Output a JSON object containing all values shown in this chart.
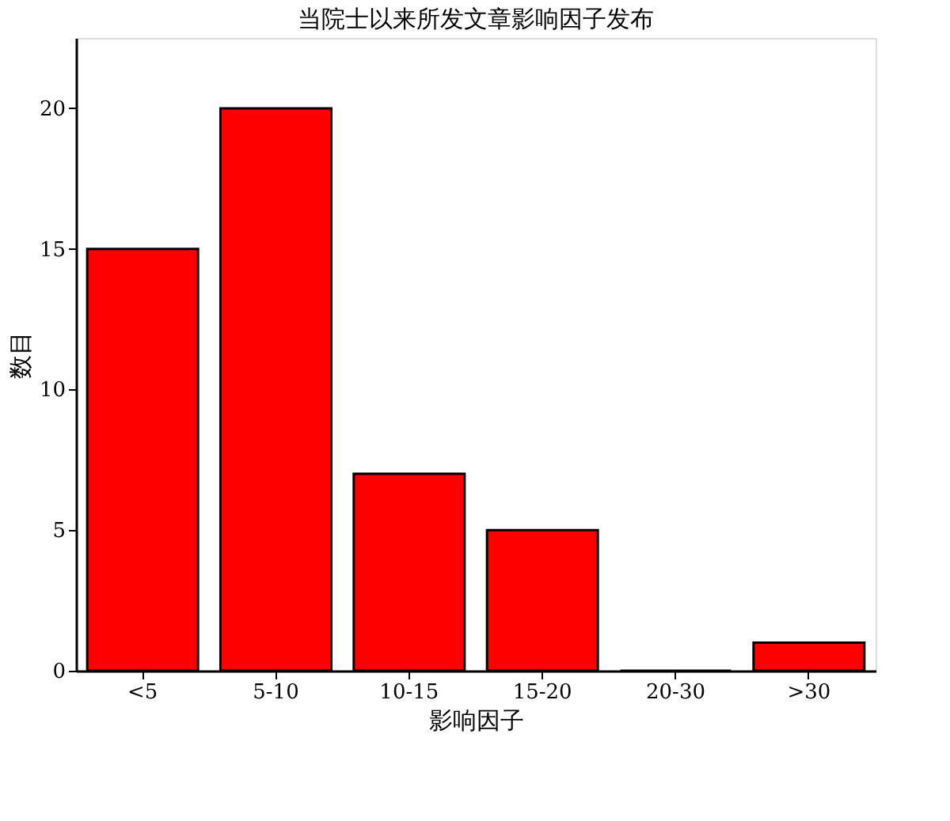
{
  "chart_data": {
    "type": "bar",
    "title": "当院士以来所发文章影响因子发布",
    "xlabel": "影响因子",
    "ylabel": "数目",
    "categories": [
      "<5",
      "5-10",
      "10-15",
      "15-20",
      "20-30",
      ">30"
    ],
    "values": [
      15,
      20,
      7,
      5,
      0,
      1
    ],
    "color": "#ff0000",
    "ylim": [
      0,
      22.5
    ],
    "yticks": [
      0,
      5,
      10,
      15,
      20
    ],
    "grid": false
  }
}
